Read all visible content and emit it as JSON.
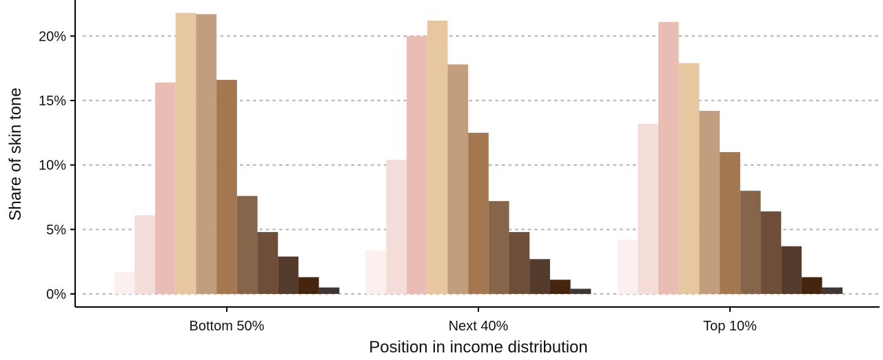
{
  "chart_data": {
    "type": "bar",
    "xlabel": "Position in income distribution",
    "ylabel": "Share of skin tone",
    "categories": [
      "Bottom 50%",
      "Next 40%",
      "Top 10%"
    ],
    "ylim": [
      0,
      22
    ],
    "y_ticks": [
      0,
      5,
      10,
      15,
      20
    ],
    "y_tick_labels": [
      "0%",
      "5%",
      "10%",
      "15%",
      "20%"
    ],
    "grid": "horizontal dotted",
    "legend": "none",
    "series": [
      {
        "color": "#FCEFEF",
        "values": [
          1.7,
          3.4,
          4.2
        ]
      },
      {
        "color": "#F4DDD8",
        "values": [
          6.1,
          10.4,
          13.2
        ]
      },
      {
        "color": "#E9BDB4",
        "values": [
          16.4,
          20.0,
          21.1
        ]
      },
      {
        "color": "#E6C7A0",
        "values": [
          21.8,
          21.2,
          17.9
        ]
      },
      {
        "color": "#C39E7E",
        "values": [
          21.7,
          17.8,
          14.2
        ]
      },
      {
        "color": "#A37850",
        "values": [
          16.6,
          12.5,
          11.0
        ]
      },
      {
        "color": "#86654B",
        "values": [
          7.6,
          7.2,
          8.0
        ]
      },
      {
        "color": "#6E4E38",
        "values": [
          4.8,
          4.8,
          6.4
        ]
      },
      {
        "color": "#553B2C",
        "values": [
          2.9,
          2.7,
          3.7
        ]
      },
      {
        "color": "#46250F",
        "values": [
          1.3,
          1.1,
          1.3
        ]
      },
      {
        "color": "#403632",
        "values": [
          0.5,
          0.4,
          0.5
        ]
      }
    ]
  }
}
